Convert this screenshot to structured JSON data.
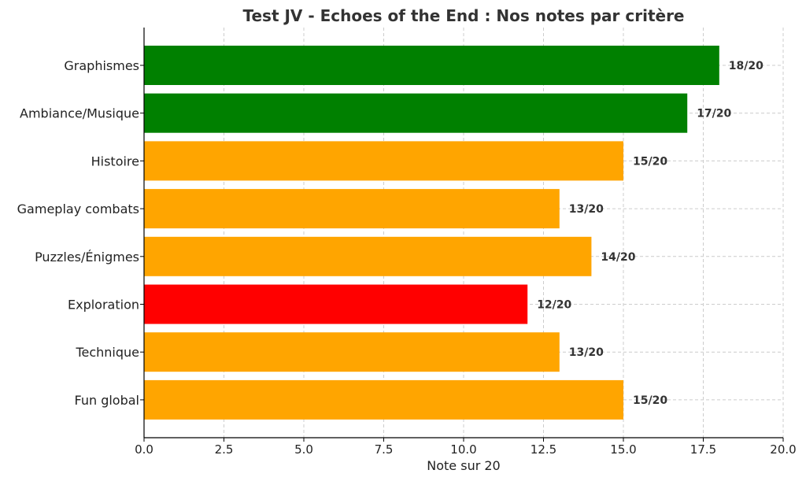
{
  "chart_data": {
    "type": "bar",
    "orientation": "horizontal",
    "title": "Test JV - Echoes of the End : Nos notes par critère",
    "xlabel": "Note sur 20",
    "ylabel": "",
    "xlim": [
      0,
      20
    ],
    "xticks": [
      "0.0",
      "2.5",
      "5.0",
      "7.5",
      "10.0",
      "12.5",
      "15.0",
      "17.5",
      "20.0"
    ],
    "grid": true,
    "categories": [
      "Graphismes",
      "Ambiance/Musique",
      "Histoire",
      "Gameplay combats",
      "Puzzles/Énigmes",
      "Exploration",
      "Technique",
      "Fun global"
    ],
    "values": [
      18,
      17,
      15,
      13,
      14,
      12,
      13,
      15
    ],
    "data_labels": [
      "18/20",
      "17/20",
      "15/20",
      "13/20",
      "14/20",
      "12/20",
      "13/20",
      "15/20"
    ],
    "colors": [
      "#008000",
      "#008000",
      "#FFA500",
      "#FFA500",
      "#FFA500",
      "#FF0000",
      "#FFA500",
      "#FFA500"
    ]
  }
}
